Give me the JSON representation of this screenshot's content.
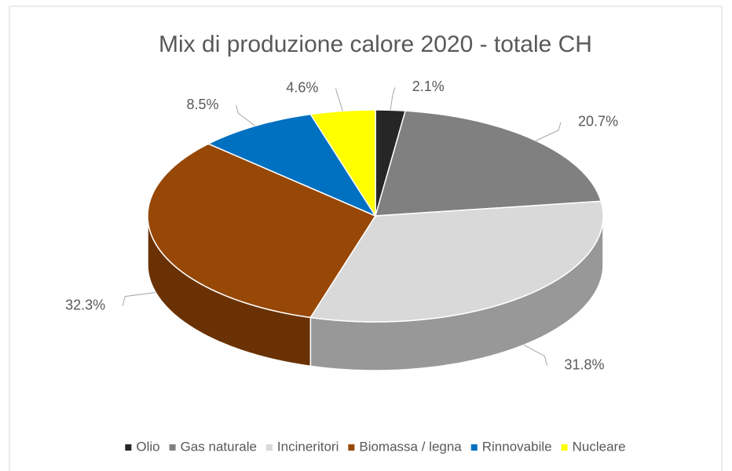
{
  "chart_data": {
    "type": "pie3d",
    "title": "Mix di produzione  calore 2020 - totale CH",
    "categories": [
      "Olio",
      "Gas naturale",
      "Incineritori",
      "Biomassa / legna",
      "Rinnovabile",
      "Nucleare"
    ],
    "values": [
      2.1,
      20.7,
      31.8,
      32.3,
      8.5,
      4.6
    ],
    "value_labels": [
      "2.1%",
      "20.7%",
      "31.8%",
      "32.3%",
      "8.5%",
      "4.6%"
    ],
    "colors": [
      "#262626",
      "#808080",
      "#d9d9d9",
      "#974706",
      "#0070c0",
      "#ffff00"
    ],
    "legend": "bottom"
  }
}
